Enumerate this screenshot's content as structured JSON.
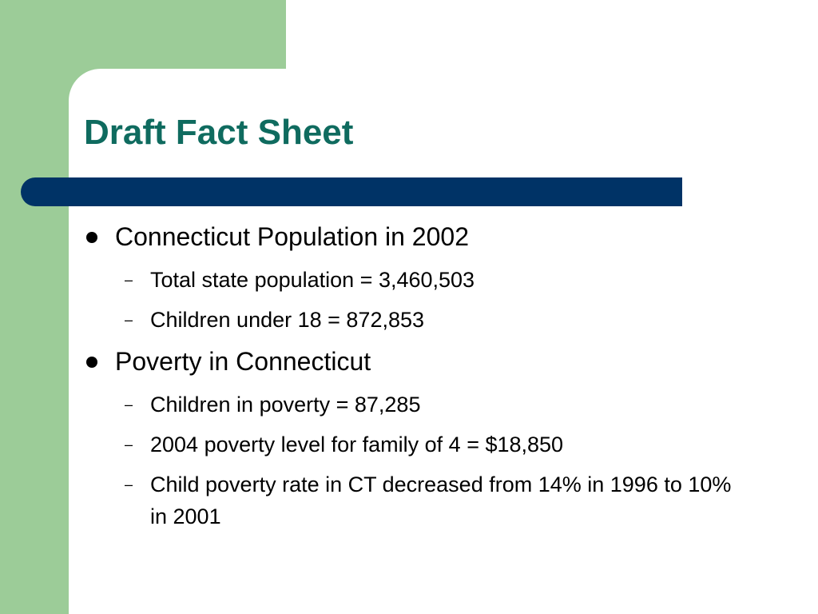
{
  "theme": {
    "accent_green": "#9ccc98",
    "title_color": "#0f6b5f",
    "bar_color": "#003366"
  },
  "slide": {
    "title": "Draft Fact Sheet",
    "bullets": [
      {
        "text": "Connecticut Population in 2002",
        "subs": [
          "Total state population = 3,460,503",
          "Children under 18 = 872,853"
        ]
      },
      {
        "text": "Poverty in Connecticut",
        "subs": [
          "Children in poverty = 87,285",
          "2004 poverty level for family of 4 = $18,850",
          "Child poverty rate in CT decreased from 14% in 1996 to 10% in 2001"
        ]
      }
    ],
    "sub_marker": "–"
  }
}
